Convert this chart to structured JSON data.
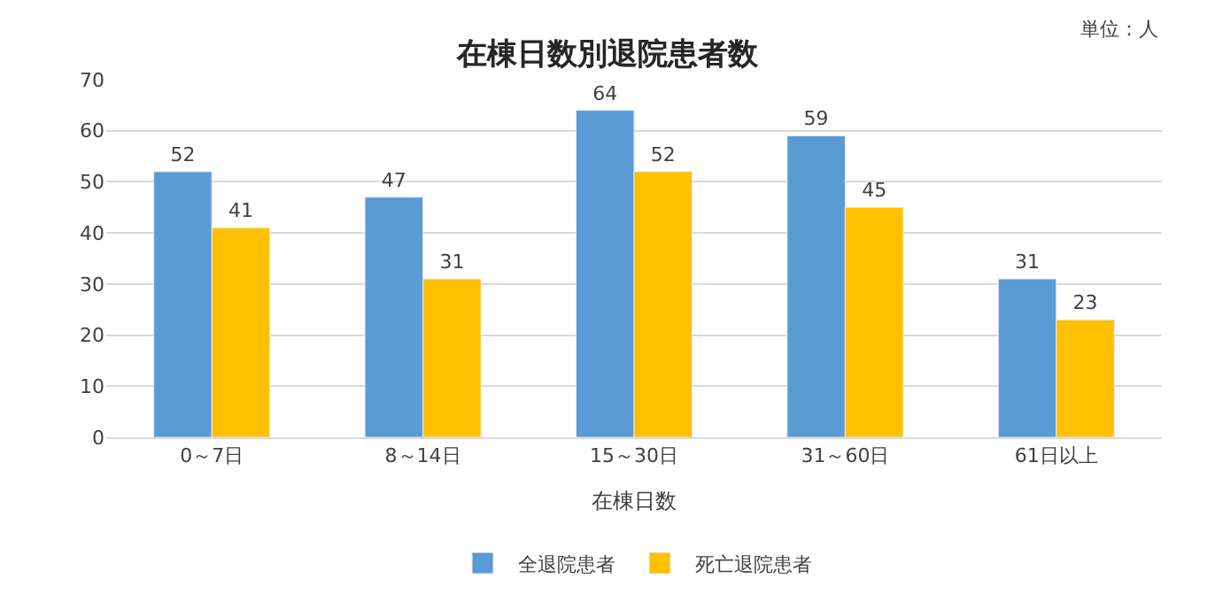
{
  "chart_data": {
    "type": "bar",
    "title": "在棟日数別退院患者数",
    "xlabel": "在棟日数",
    "annotations": [
      "単位：人"
    ],
    "categories": [
      "0～7日",
      "8～14日",
      "15～30日",
      "31～60日",
      "61日以上"
    ],
    "series": [
      {
        "name": "全退院患者",
        "color": "#5b9bd5",
        "values": [
          52,
          47,
          64,
          59,
          31
        ]
      },
      {
        "name": "死亡退院患者",
        "color": "#ffc000",
        "values": [
          41,
          31,
          52,
          45,
          23
        ]
      }
    ],
    "ylim": [
      0,
      70
    ],
    "yticks": [
      0,
      10,
      20,
      30,
      40,
      50,
      60,
      70
    ],
    "grid": "y",
    "legend": "bottom",
    "data_labels": true
  }
}
